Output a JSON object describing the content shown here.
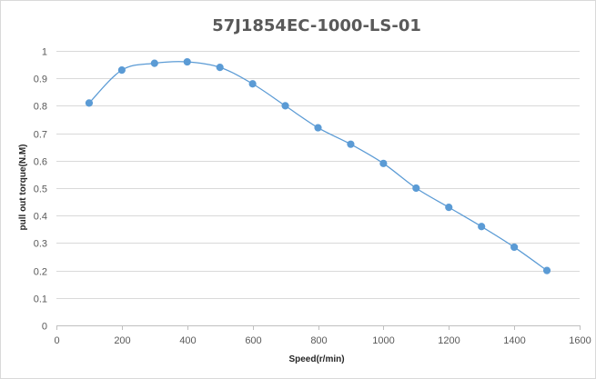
{
  "chart_data": {
    "type": "scatter",
    "title": "57J1854EC-1000-LS-01",
    "xlabel": "Speed(r/min)",
    "ylabel": "pull out torque(N.M)",
    "xlim": [
      0,
      1600
    ],
    "ylim": [
      0,
      1
    ],
    "xticks": [
      0,
      200,
      400,
      600,
      800,
      1000,
      1200,
      1400,
      1600
    ],
    "yticks": [
      0,
      0.1,
      0.2,
      0.3,
      0.4,
      0.5,
      0.6,
      0.7,
      0.8,
      0.9,
      1
    ],
    "x_tick_labels": [
      "0",
      "200",
      "400",
      "600",
      "800",
      "1000",
      "1200",
      "1400",
      "1600"
    ],
    "y_tick_labels": [
      "0",
      "0.1",
      "0.2",
      "0.3",
      "0.4",
      "0.5",
      "0.6",
      "0.7",
      "0.8",
      "0.9",
      "1"
    ],
    "grid": "horizontal",
    "smooth_line": true,
    "series": [
      {
        "x": [
          100,
          200,
          300,
          400,
          500,
          600,
          700,
          800,
          900,
          1000,
          1100,
          1200,
          1300,
          1400,
          1500
        ],
        "y": [
          0.81,
          0.93,
          0.955,
          0.96,
          0.94,
          0.88,
          0.8,
          0.72,
          0.66,
          0.59,
          0.5,
          0.43,
          0.36,
          0.285,
          0.2
        ],
        "color": "#5b9bd5"
      }
    ],
    "colors": {
      "grid": "#d9d9d9",
      "axis": "#bfbfbf",
      "series": "#5b9bd5"
    }
  }
}
